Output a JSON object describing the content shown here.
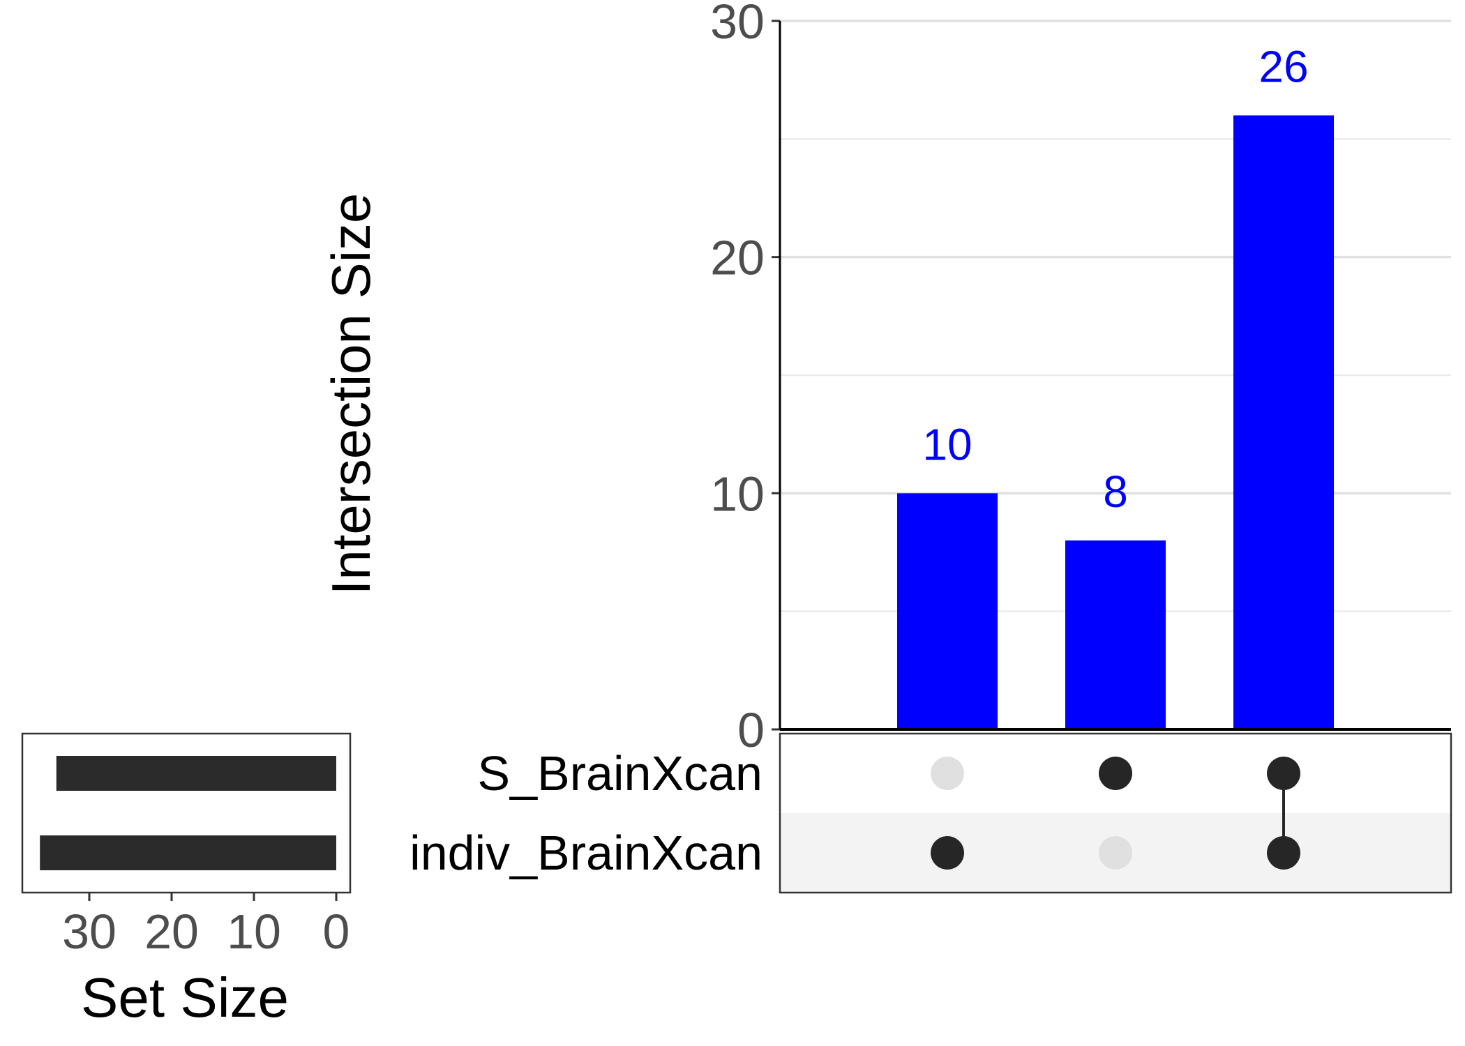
{
  "chart_data": {
    "type": "bar",
    "title": "",
    "ylabel": "Intersection Size",
    "ylim": [
      0,
      30
    ],
    "yticks": [
      "0",
      "10",
      "20",
      "30"
    ],
    "grid": true,
    "bar_color": "#0000ff",
    "label_color": "#0000ff",
    "intersections": [
      {
        "sets": [
          "indiv_BrainXcan"
        ],
        "value": 10,
        "label": "10"
      },
      {
        "sets": [
          "S_BrainXcan"
        ],
        "value": 8,
        "label": "8"
      },
      {
        "sets": [
          "S_BrainXcan",
          "indiv_BrainXcan"
        ],
        "value": 26,
        "label": "26"
      }
    ],
    "sets": [
      {
        "name": "S_BrainXcan",
        "size": 34
      },
      {
        "name": "indiv_BrainXcan",
        "size": 36
      }
    ],
    "set_size_axis": {
      "label": "Set Size",
      "ticks": [
        "30",
        "20",
        "10",
        "0"
      ],
      "max": 40
    },
    "set_bar_color": "#2b2b2b",
    "dot_active_color": "#262626",
    "dot_inactive_color": "#e0e0e0",
    "matrix_stripe_color": "#f3f3f3"
  }
}
